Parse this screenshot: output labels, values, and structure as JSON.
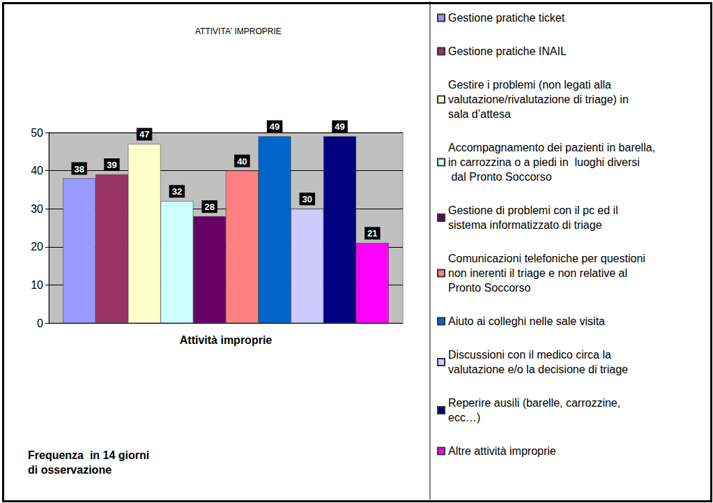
{
  "chart_data": {
    "type": "bar",
    "title": "ATTIVITA' IMPROPRIE",
    "categories": [
      "Attività improprie"
    ],
    "annotation": "Frequenza  in 14 giorni di osservazione",
    "series": [
      {
        "name": "Gestione pratiche ticket",
        "color": "#9999ff",
        "values": [
          38
        ]
      },
      {
        "name": "Gestione pratiche INAIL",
        "color": "#993366",
        "values": [
          39
        ]
      },
      {
        "name": "Gestire i problemi (non legati alla valutazione/rivalutazione di triage) in sala d’attesa",
        "color": "#ffffcc",
        "values": [
          47
        ]
      },
      {
        "name": "Accompagnamento dei pazienti in barella, in carrozzina o a piedi in  luoghi diversi dal Pronto Soccorso",
        "color": "#ccffff",
        "values": [
          32
        ]
      },
      {
        "name": "Gestione di problemi con il pc ed il sistema informatizzato di triage",
        "color": "#660066",
        "values": [
          28
        ]
      },
      {
        "name": "Comunicazioni telefoniche per questioni non inerenti il triage e non relative al Pronto Soccorso",
        "color": "#ff8080",
        "values": [
          40
        ]
      },
      {
        "name": "Aiuto ai colleghi nelle sale visita",
        "color": "#0066cc",
        "values": [
          49
        ]
      },
      {
        "name": "Discussioni con il medico circa la valutazione e/o la decisione di triage",
        "color": "#ccccff",
        "values": [
          30
        ]
      },
      {
        "name": "Reperire ausili (barelle, carrozzine, ecc…)",
        "color": "#000080",
        "values": [
          49
        ]
      },
      {
        "name": "Altre attività improprie",
        "color": "#ff00ff",
        "values": [
          21
        ]
      }
    ],
    "ylim": [
      0,
      50
    ],
    "yticks": [
      0,
      10,
      20,
      30,
      40,
      50
    ],
    "grid": true,
    "data_labels": true,
    "legend": "right"
  }
}
